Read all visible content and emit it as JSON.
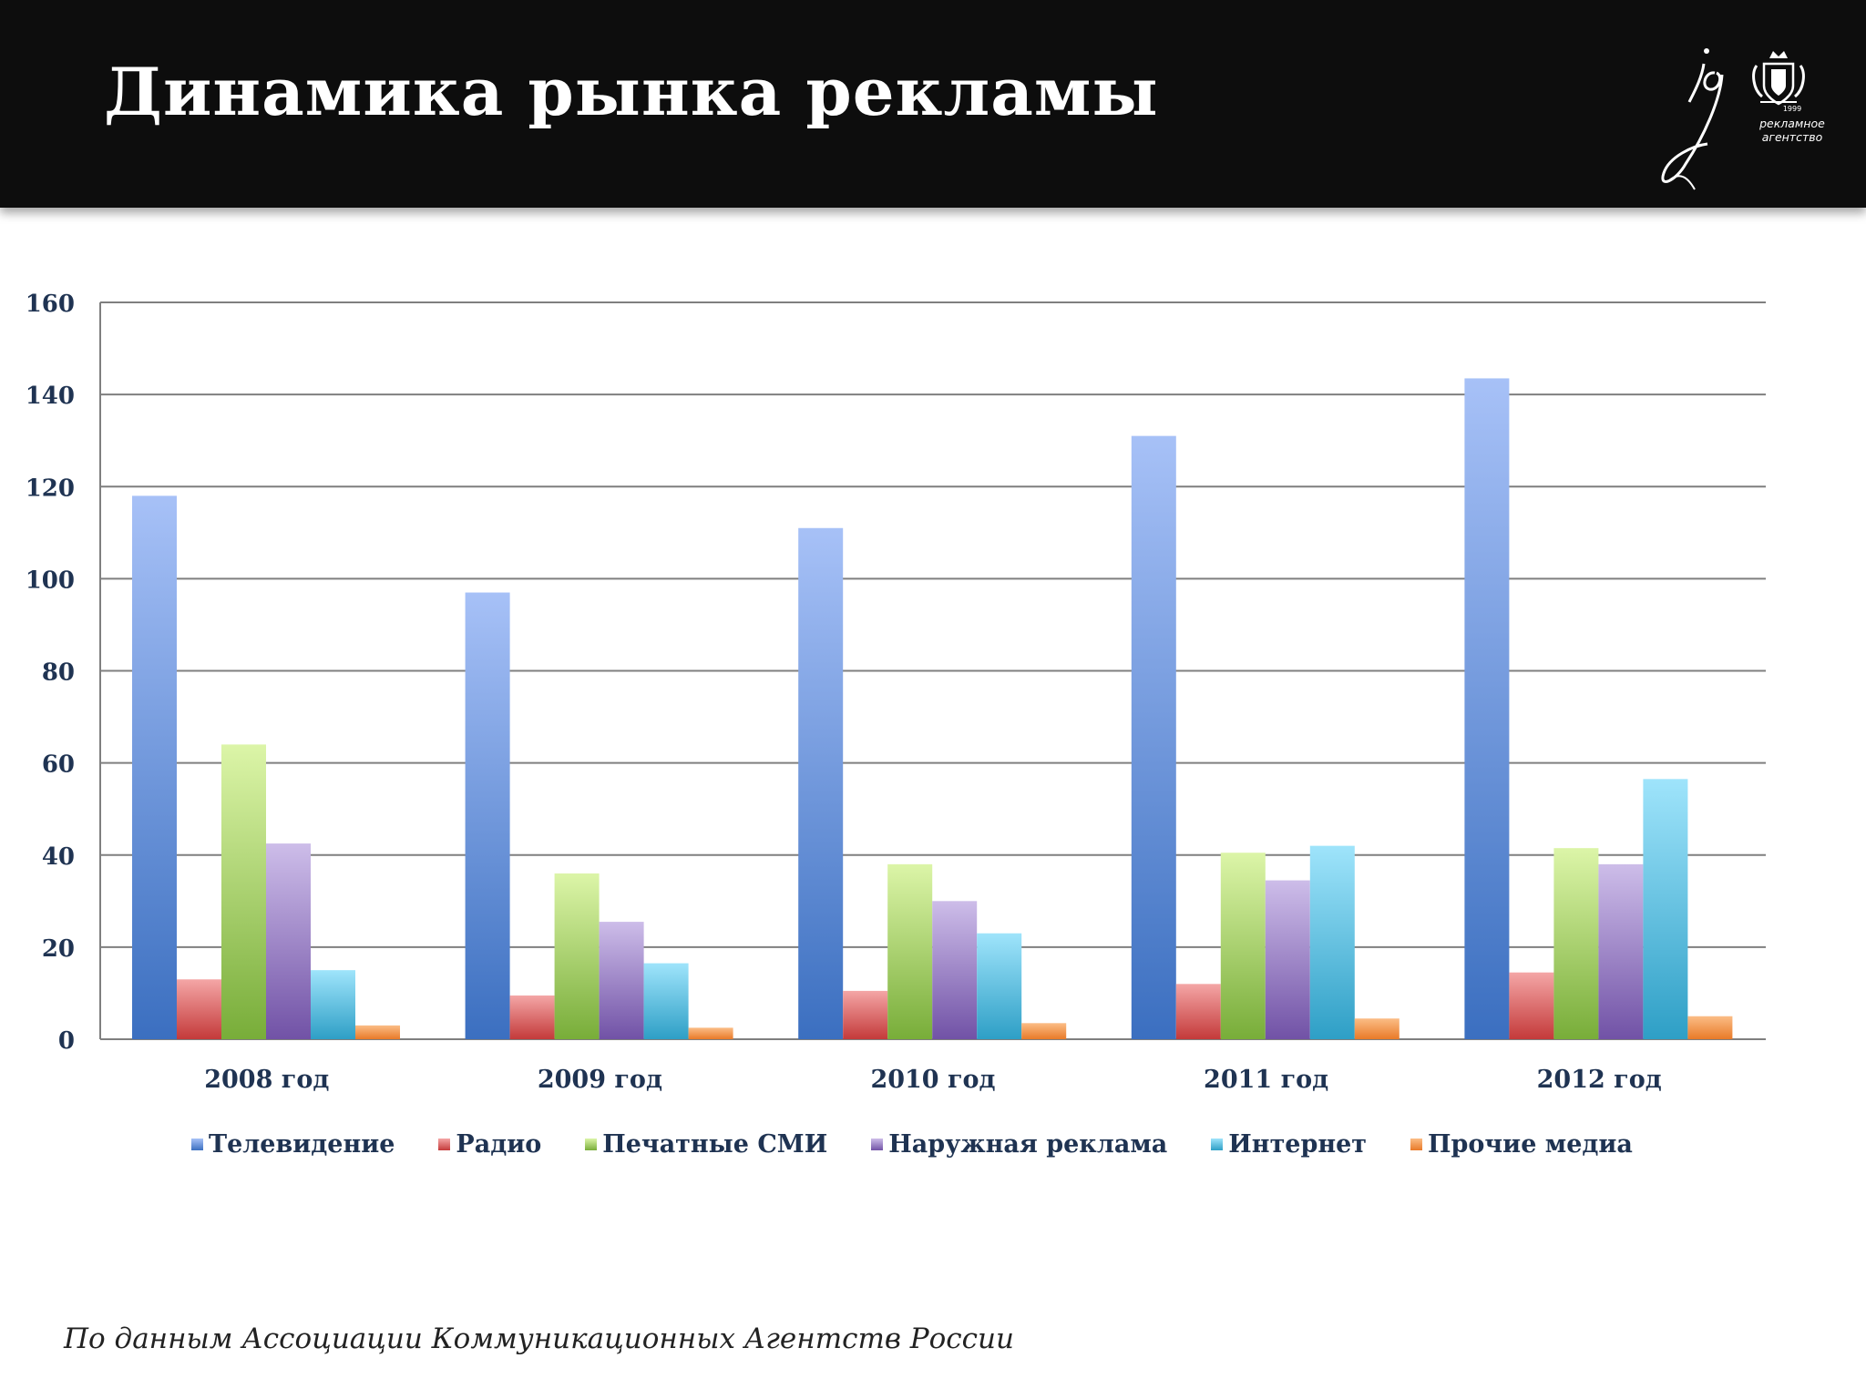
{
  "header": {
    "title": "Динамика рынка рекламы",
    "logo_year": "1999",
    "logo_text_line1": "рекламное",
    "logo_text_line2": "агентство"
  },
  "footer": {
    "source": "По данным Ассоциации Коммуникационных  Агентств России"
  },
  "colors": {
    "header_bg": "#0d0d0d",
    "axis_label": "#1f3352",
    "gridline": "#7f7f7f"
  },
  "chart_data": {
    "type": "bar",
    "categories": [
      "2008 год",
      "2009 год",
      "2010 год",
      "2011 год",
      "2012 год"
    ],
    "series": [
      {
        "name": "Телевидение",
        "values": [
          118,
          97,
          111,
          131,
          143.5
        ],
        "color_top": "#a7c1f7",
        "color_bottom": "#3b6fc0"
      },
      {
        "name": "Радио",
        "values": [
          13,
          9.5,
          10.5,
          12,
          14.5
        ],
        "color_top": "#f4a6a6",
        "color_bottom": "#c43a3a"
      },
      {
        "name": "Печатные СМИ",
        "values": [
          64,
          36,
          38,
          40.5,
          41.5
        ],
        "color_top": "#dcf5a8",
        "color_bottom": "#78ad39"
      },
      {
        "name": "Наружная реклама",
        "values": [
          42.5,
          25.5,
          30,
          34.5,
          38
        ],
        "color_top": "#cdbde9",
        "color_bottom": "#7152a6"
      },
      {
        "name": "Интернет",
        "values": [
          15,
          16.5,
          23,
          42,
          56.5
        ],
        "color_top": "#9fe4fb",
        "color_bottom": "#2e9fc6"
      },
      {
        "name": "Прочие медиа",
        "values": [
          3,
          2.5,
          3.5,
          4.5,
          5
        ],
        "color_top": "#fbbd86",
        "color_bottom": "#e97a28"
      }
    ],
    "ylim": [
      0,
      160
    ],
    "yticks": [
      0,
      20,
      40,
      60,
      80,
      100,
      120,
      140,
      160
    ],
    "grid": true,
    "legend": "bottom"
  }
}
